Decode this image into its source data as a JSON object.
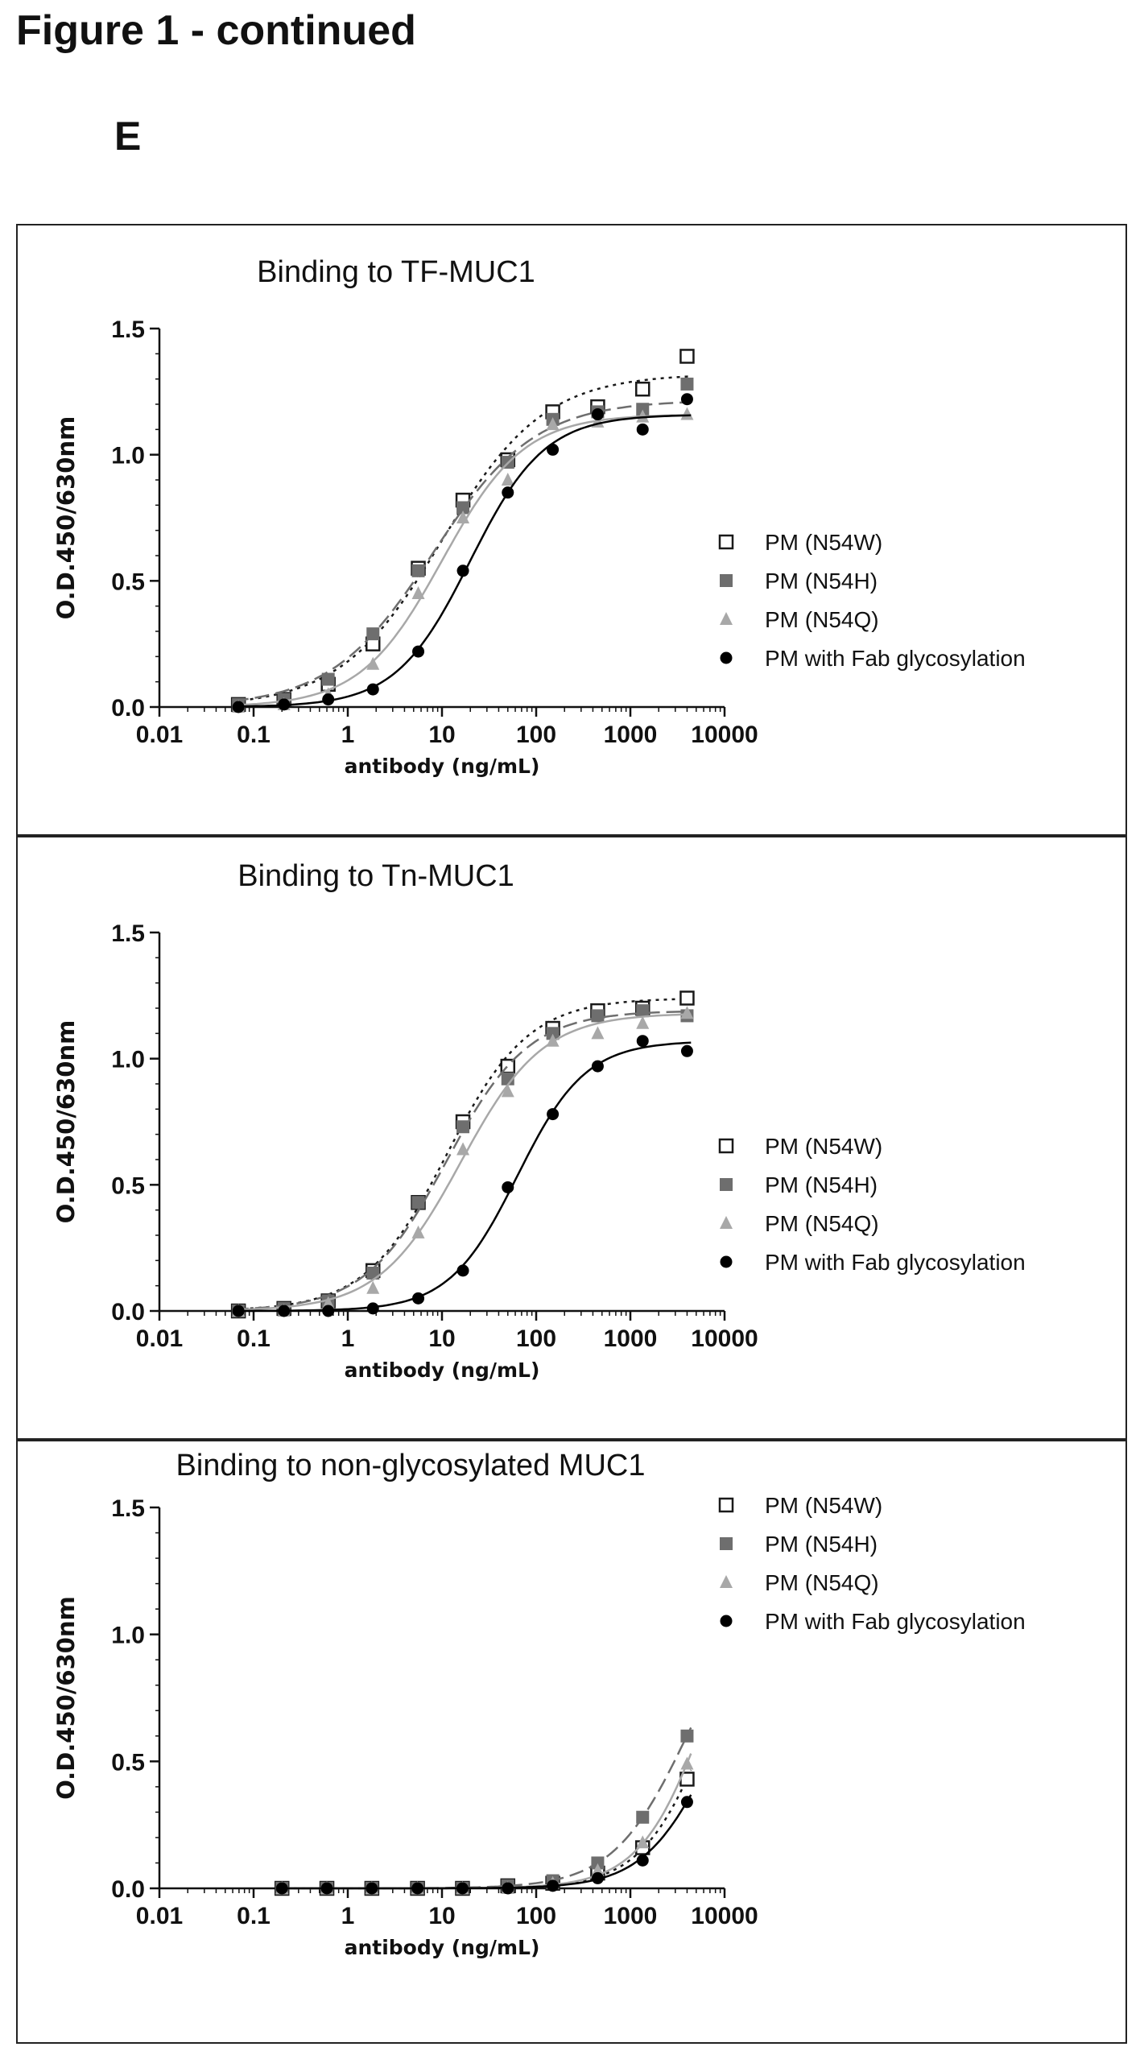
{
  "page": {
    "heading": "Figure 1 - continued",
    "panel_letter": "E"
  },
  "series_styles": [
    {
      "name": "PM (N54W)",
      "marker": "open-square",
      "color": "#1a1a1a",
      "dash": "4,6"
    },
    {
      "name": "PM (N54H)",
      "marker": "filled-square",
      "color": "#6e6e6e",
      "dash": "18,8"
    },
    {
      "name": "PM (N54Q)",
      "marker": "triangle",
      "color": "#a8a8a8",
      "dash": ""
    },
    {
      "name": "PM with Fab glycosylation",
      "marker": "filled-circle",
      "color": "#000000",
      "dash": ""
    }
  ],
  "chart_data": [
    {
      "type": "scatter",
      "title": "Binding to TF-MUC1",
      "xlabel": "antibody (ng/mL)",
      "ylabel": "O.D.450/630nm",
      "x_scale": "log",
      "xlim": [
        0.01,
        10000
      ],
      "ylim": [
        0,
        1.5
      ],
      "x_ticks": [
        "0.01",
        "0.1",
        "1",
        "10",
        "100",
        "1000",
        "10000"
      ],
      "y_ticks": [
        "0.0",
        "0.5",
        "1.0",
        "1.5"
      ],
      "legend": "right",
      "x": [
        0.069,
        0.21,
        0.62,
        1.85,
        5.6,
        16.7,
        50,
        150,
        450,
        1350,
        4000
      ],
      "series": [
        {
          "name": "PM (N54W)",
          "values": [
            0.01,
            0.03,
            0.09,
            0.25,
            0.55,
            0.82,
            0.98,
            1.17,
            1.19,
            1.26,
            1.39
          ]
        },
        {
          "name": "PM (N54H)",
          "values": [
            0.01,
            0.03,
            0.11,
            0.29,
            0.54,
            0.79,
            0.97,
            1.14,
            1.17,
            1.18,
            1.28
          ]
        },
        {
          "name": "PM (N54Q)",
          "values": [
            0.0,
            0.01,
            0.05,
            0.17,
            0.45,
            0.75,
            0.9,
            1.12,
            1.13,
            1.15,
            1.16
          ]
        },
        {
          "name": "PM with Fab glycosylation",
          "values": [
            0.0,
            0.01,
            0.03,
            0.07,
            0.22,
            0.54,
            0.85,
            1.02,
            1.16,
            1.1,
            1.22
          ]
        }
      ]
    },
    {
      "type": "scatter",
      "title": "Binding to Tn-MUC1",
      "xlabel": "antibody (ng/mL)",
      "ylabel": "O.D.450/630nm",
      "x_scale": "log",
      "xlim": [
        0.01,
        10000
      ],
      "ylim": [
        0,
        1.5
      ],
      "x_ticks": [
        "0.01",
        "0.1",
        "1",
        "10",
        "100",
        "1000",
        "10000"
      ],
      "y_ticks": [
        "0.0",
        "0.5",
        "1.0",
        "1.5"
      ],
      "legend": "right",
      "x": [
        0.069,
        0.21,
        0.62,
        1.85,
        5.6,
        16.7,
        50,
        150,
        450,
        1350,
        4000
      ],
      "series": [
        {
          "name": "PM (N54W)",
          "values": [
            0.0,
            0.01,
            0.04,
            0.16,
            0.43,
            0.75,
            0.97,
            1.12,
            1.19,
            1.2,
            1.24
          ]
        },
        {
          "name": "PM (N54H)",
          "values": [
            0.0,
            0.01,
            0.04,
            0.15,
            0.43,
            0.73,
            0.92,
            1.1,
            1.17,
            1.19,
            1.17
          ]
        },
        {
          "name": "PM (N54Q)",
          "values": [
            0.0,
            0.0,
            0.03,
            0.09,
            0.31,
            0.64,
            0.87,
            1.07,
            1.1,
            1.14,
            1.18
          ]
        },
        {
          "name": "PM with Fab glycosylation",
          "values": [
            0.0,
            0.0,
            0.0,
            0.01,
            0.05,
            0.16,
            0.49,
            0.78,
            0.97,
            1.07,
            1.03
          ]
        }
      ]
    },
    {
      "type": "scatter",
      "title": "Binding to non-glycosylated MUC1",
      "xlabel": "antibody (ng/mL)",
      "ylabel": "O.D.450/630nm",
      "x_scale": "log",
      "xlim": [
        0.01,
        10000
      ],
      "ylim": [
        0,
        1.5
      ],
      "x_ticks": [
        "0.01",
        "0.1",
        "1",
        "10",
        "100",
        "1000",
        "10000"
      ],
      "y_ticks": [
        "0.0",
        "0.5",
        "1.0",
        "1.5"
      ],
      "legend": "top-right",
      "x": [
        0.2,
        0.6,
        1.8,
        5.5,
        16.5,
        50,
        150,
        450,
        1350,
        4000
      ],
      "series": [
        {
          "name": "PM (N54W)",
          "values": [
            0.0,
            0.0,
            0.0,
            0.0,
            0.0,
            0.01,
            0.02,
            0.06,
            0.16,
            0.43
          ]
        },
        {
          "name": "PM (N54H)",
          "values": [
            0.0,
            0.0,
            0.0,
            0.0,
            0.0,
            0.01,
            0.03,
            0.1,
            0.28,
            0.6
          ]
        },
        {
          "name": "PM (N54Q)",
          "values": [
            0.0,
            0.0,
            0.0,
            0.0,
            0.0,
            0.0,
            0.02,
            0.07,
            0.18,
            0.49
          ]
        },
        {
          "name": "PM with Fab glycosylation",
          "values": [
            0.0,
            0.0,
            0.0,
            0.0,
            0.0,
            0.0,
            0.01,
            0.04,
            0.11,
            0.34
          ]
        }
      ]
    }
  ]
}
